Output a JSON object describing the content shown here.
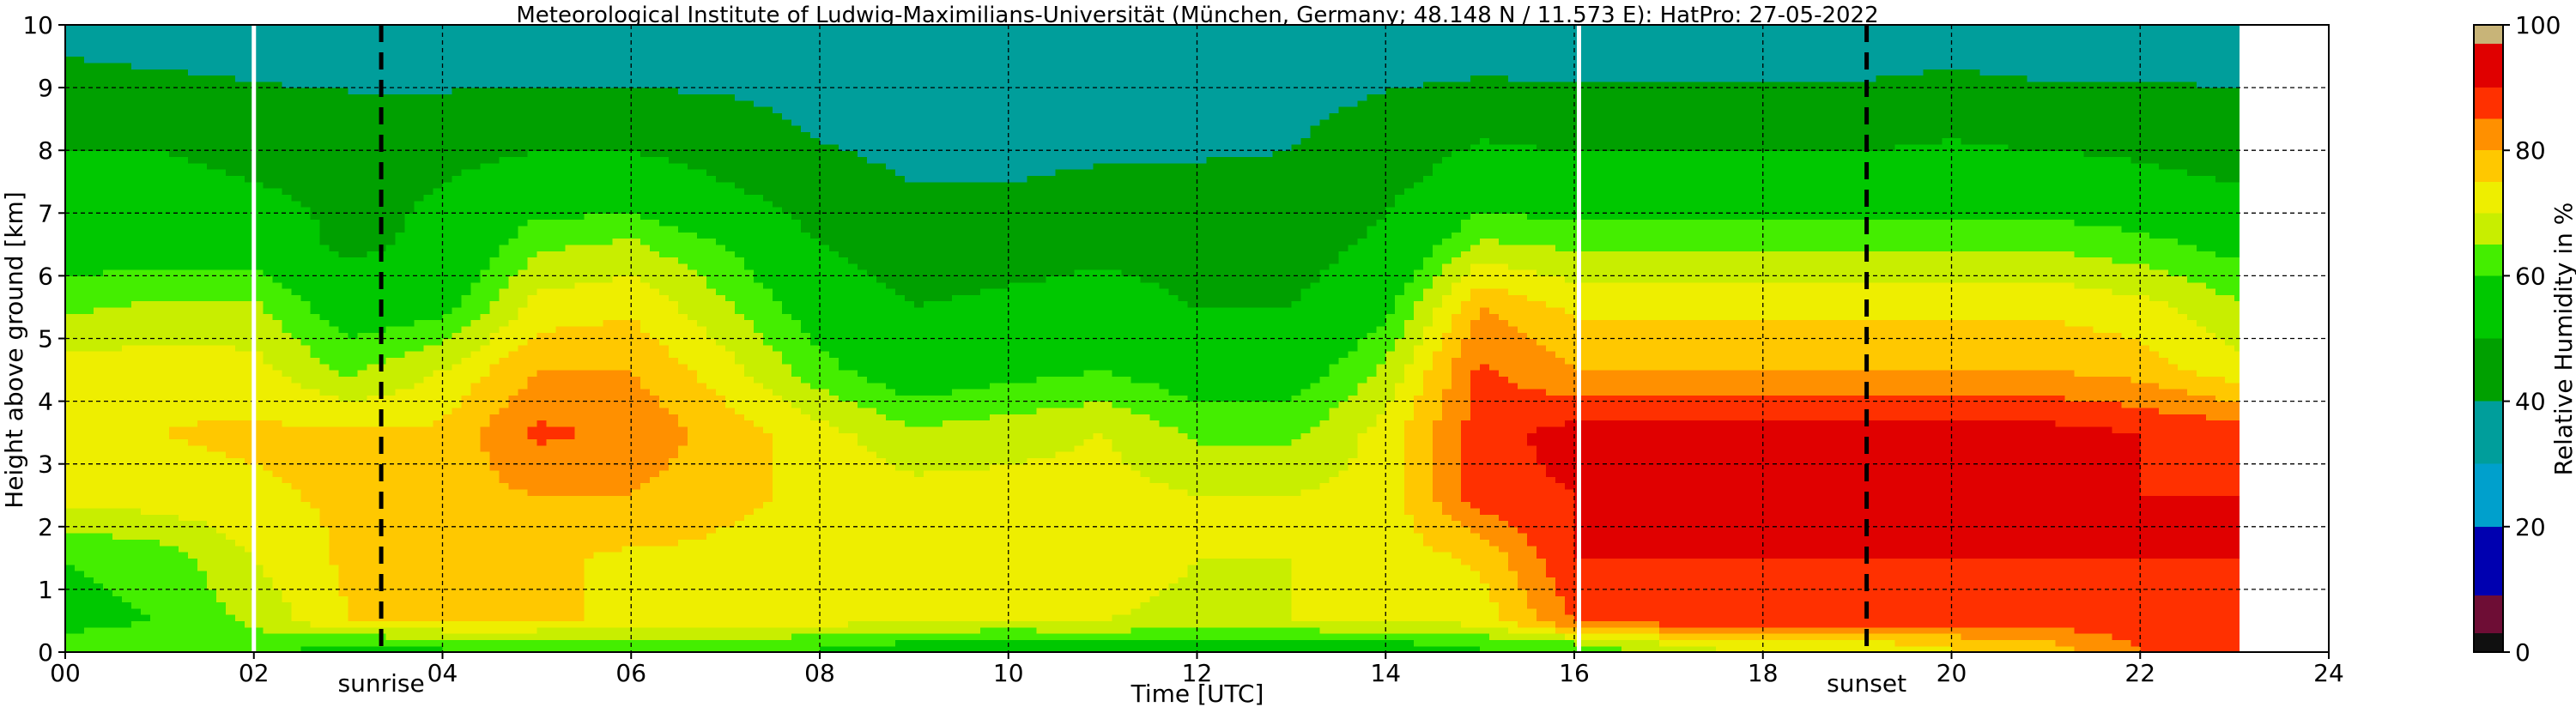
{
  "chart_data": {
    "type": "heatmap",
    "title": "Meteorological Institute of Ludwig-Maximilians-Universität (München, Germany; 48.148 N / 11.573 E):    HatPro: 27-05-2022",
    "xlabel": "Time [UTC]",
    "ylabel": "Height above ground [km]",
    "xlim": [
      0,
      24
    ],
    "ylim": [
      0,
      10
    ],
    "x_tick_values": [
      0,
      2,
      4,
      6,
      8,
      10,
      12,
      14,
      16,
      18,
      20,
      22,
      24
    ],
    "x_tick_labels": [
      "00",
      "02",
      "04",
      "06",
      "08",
      "10",
      "12",
      "14",
      "16",
      "18",
      "20",
      "22",
      "24"
    ],
    "y_tick_labels": [
      "0",
      "1",
      "2",
      "3",
      "4",
      "5",
      "6",
      "7",
      "8",
      "9",
      "10"
    ],
    "grid": true,
    "data_end_hour": 23.05,
    "colorbar": {
      "label": "Relative Humidity in %",
      "range": [
        0,
        100
      ],
      "tick_labels": [
        "0",
        "20",
        "40",
        "60",
        "80",
        "100"
      ],
      "bands": [
        {
          "from": 0,
          "to": 3,
          "color": "#101010"
        },
        {
          "from": 3,
          "to": 9,
          "color": "#6e0d35"
        },
        {
          "from": 9,
          "to": 20,
          "color": "#0000b0"
        },
        {
          "from": 20,
          "to": 30,
          "color": "#00a0cc"
        },
        {
          "from": 30,
          "to": 40,
          "color": "#009e9b"
        },
        {
          "from": 40,
          "to": 50,
          "color": "#00a000"
        },
        {
          "from": 50,
          "to": 60,
          "color": "#00c800"
        },
        {
          "from": 60,
          "to": 65,
          "color": "#44ee00"
        },
        {
          "from": 65,
          "to": 70,
          "color": "#c8ee00"
        },
        {
          "from": 70,
          "to": 75,
          "color": "#eeee00"
        },
        {
          "from": 75,
          "to": 80,
          "color": "#ffc800"
        },
        {
          "from": 80,
          "to": 85,
          "color": "#ff9000"
        },
        {
          "from": 85,
          "to": 90,
          "color": "#ff3000"
        },
        {
          "from": 90,
          "to": 97,
          "color": "#e00000"
        },
        {
          "from": 97,
          "to": 100,
          "color": "#c8b478"
        }
      ]
    },
    "vertical_lines": [
      {
        "hour": 2.0,
        "style": "solid-white"
      },
      {
        "hour": 3.35,
        "style": "dashed-black",
        "label": "sunrise"
      },
      {
        "hour": 16.05,
        "style": "solid-white"
      },
      {
        "hour": 19.1,
        "style": "dashed-black",
        "label": "sunset"
      }
    ],
    "rh_field": {
      "heights_km": [
        0.1,
        0.5,
        1.5,
        2.5,
        3.5,
        4.5,
        5.5,
        6.5,
        7.5,
        8.5,
        9.5
      ],
      "hours": [
        0,
        1,
        2,
        3,
        4,
        5,
        6,
        7,
        8,
        9,
        10,
        11,
        12,
        13,
        14,
        15,
        16,
        17,
        18,
        19,
        20,
        21,
        22,
        23
      ],
      "values": [
        [
          62,
          64,
          62,
          58,
          60,
          60,
          62,
          62,
          60,
          58,
          56,
          58,
          56,
          56,
          58,
          60,
          62,
          68,
          72,
          72,
          75,
          78,
          85,
          85
        ],
        [
          58,
          60,
          66,
          75,
          76,
          76,
          74,
          73,
          72,
          70,
          70,
          70,
          68,
          70,
          70,
          72,
          85,
          88,
          88,
          88,
          88,
          88,
          88,
          88
        ],
        [
          60,
          62,
          70,
          76,
          78,
          76,
          74,
          74,
          72,
          70,
          72,
          74,
          70,
          70,
          72,
          76,
          90,
          90,
          90,
          90,
          90,
          90,
          90,
          90
        ],
        [
          72,
          73,
          74,
          76,
          78,
          80,
          80,
          76,
          74,
          72,
          72,
          72,
          70,
          70,
          72,
          88,
          90,
          90,
          90,
          90,
          90,
          90,
          90,
          90
        ],
        [
          74,
          75,
          76,
          76,
          76,
          86,
          84,
          78,
          72,
          66,
          68,
          70,
          64,
          64,
          72,
          88,
          92,
          92,
          92,
          92,
          92,
          92,
          90,
          88
        ],
        [
          72,
          73,
          72,
          64,
          70,
          80,
          80,
          72,
          62,
          55,
          58,
          60,
          56,
          56,
          66,
          86,
          80,
          80,
          80,
          80,
          80,
          80,
          78,
          72
        ],
        [
          64,
          66,
          66,
          56,
          58,
          72,
          74,
          66,
          56,
          50,
          52,
          54,
          50,
          50,
          58,
          80,
          74,
          74,
          74,
          74,
          74,
          74,
          72,
          66
        ],
        [
          56,
          56,
          56,
          48,
          52,
          64,
          66,
          60,
          50,
          45,
          46,
          48,
          46,
          46,
          52,
          66,
          64,
          64,
          64,
          64,
          64,
          64,
          62,
          58
        ],
        [
          52,
          52,
          50,
          48,
          50,
          54,
          54,
          50,
          44,
          40,
          40,
          42,
          42,
          42,
          48,
          54,
          54,
          54,
          54,
          54,
          54,
          54,
          52,
          50
        ],
        [
          48,
          48,
          46,
          44,
          44,
          46,
          46,
          44,
          38,
          35,
          34,
          35,
          36,
          38,
          44,
          48,
          46,
          46,
          46,
          46,
          48,
          46,
          46,
          44
        ],
        [
          40,
          38,
          36,
          35,
          35,
          34,
          34,
          34,
          32,
          30,
          30,
          30,
          32,
          33,
          35,
          36,
          36,
          36,
          36,
          36,
          38,
          36,
          36,
          36
        ]
      ]
    }
  }
}
